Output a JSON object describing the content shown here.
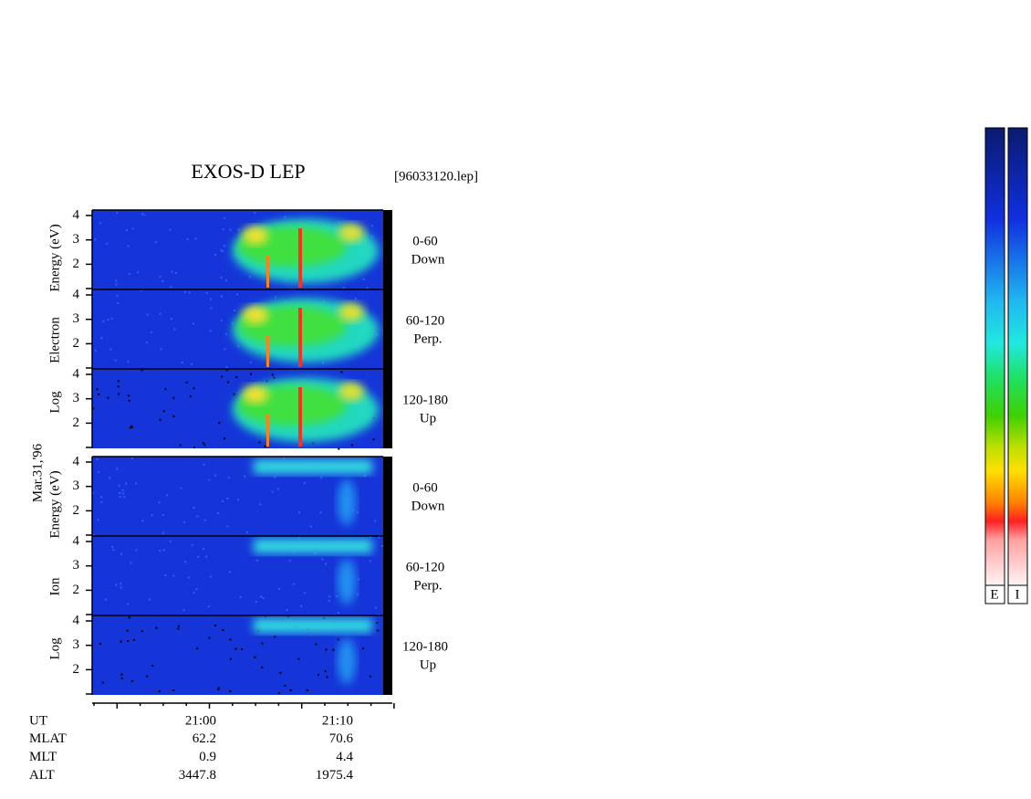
{
  "header": {
    "title": "EXOS-D LEP",
    "file": "[96033120.lep]"
  },
  "date": "Mar.31,'96",
  "groups": [
    {
      "axis_label": [
        "Log",
        "Electron",
        "Energy (eV)"
      ],
      "panels": [
        {
          "angle": "0-60",
          "direction": "Down",
          "yticks": [
            4,
            3,
            2
          ]
        },
        {
          "angle": "60-120",
          "direction": "Perp.",
          "yticks": [
            4,
            3,
            2
          ]
        },
        {
          "angle": "120-180",
          "direction": "Up",
          "yticks": [
            4,
            3,
            2
          ]
        }
      ]
    },
    {
      "axis_label": [
        "Log",
        "Ion",
        "Energy (eV)"
      ],
      "panels": [
        {
          "angle": "0-60",
          "direction": "Down",
          "yticks": [
            4,
            3,
            2
          ]
        },
        {
          "angle": "60-120",
          "direction": "Perp.",
          "yticks": [
            4,
            3,
            2
          ]
        },
        {
          "angle": "120-180",
          "direction": "Up",
          "yticks": [
            4,
            3,
            2
          ]
        }
      ]
    }
  ],
  "footer": {
    "rows": [
      {
        "label": "UT",
        "values": [
          "21:00",
          "21:10"
        ]
      },
      {
        "label": "MLAT",
        "values": [
          62.2,
          70.6
        ]
      },
      {
        "label": "MLT",
        "values": [
          0.9,
          4.4
        ]
      },
      {
        "label": "ALT",
        "values": [
          3447.8,
          1975.4
        ]
      }
    ]
  },
  "colorbar": {
    "labels": [
      "E",
      "I"
    ]
  }
}
